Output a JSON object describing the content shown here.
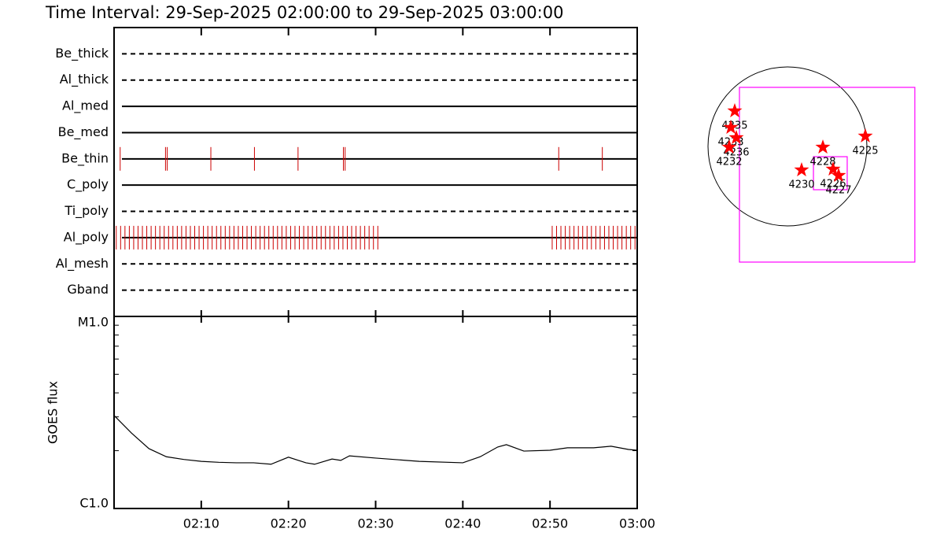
{
  "title": "Time Interval: 29-Sep-2025 02:00:00 to 29-Sep-2025 03:00:00",
  "chart_data": [
    {
      "type": "timeline",
      "xlim": [
        "02:00:00",
        "03:00:00"
      ],
      "color": "#cc0000",
      "rows": [
        {
          "label": "Be_thick",
          "style": "dashed",
          "events": []
        },
        {
          "label": "Al_thick",
          "style": "dashed",
          "events": []
        },
        {
          "label": "Al_med",
          "style": "solid",
          "events": []
        },
        {
          "label": "Be_med",
          "style": "solid",
          "events": []
        },
        {
          "label": "Be_thin",
          "style": "solid",
          "events": [
            "02:00:42",
            "02:05:54",
            "02:06:06",
            "02:11:06",
            "02:16:06",
            "02:21:06",
            "02:26:18",
            "02:26:30",
            "02:51:00",
            "02:56:00"
          ]
        },
        {
          "label": "C_poly",
          "style": "solid",
          "events": []
        },
        {
          "label": "Ti_poly",
          "style": "dashed",
          "events": []
        },
        {
          "label": "Al_poly",
          "style": "solid",
          "events": [
            "02:00:15",
            "02:00:45",
            "02:01:15",
            "02:01:45",
            "02:02:15",
            "02:02:45",
            "02:03:15",
            "02:03:45",
            "02:04:15",
            "02:04:45",
            "02:05:15",
            "02:05:45",
            "02:06:15",
            "02:06:45",
            "02:07:15",
            "02:07:45",
            "02:08:15",
            "02:08:45",
            "02:09:15",
            "02:09:45",
            "02:10:15",
            "02:10:45",
            "02:11:15",
            "02:11:45",
            "02:12:15",
            "02:12:45",
            "02:13:15",
            "02:13:45",
            "02:14:15",
            "02:14:45",
            "02:15:15",
            "02:15:45",
            "02:16:15",
            "02:16:45",
            "02:17:15",
            "02:17:45",
            "02:18:15",
            "02:18:45",
            "02:19:15",
            "02:19:45",
            "02:20:15",
            "02:20:45",
            "02:21:15",
            "02:21:45",
            "02:22:15",
            "02:22:45",
            "02:23:15",
            "02:23:45",
            "02:24:15",
            "02:24:45",
            "02:25:15",
            "02:25:45",
            "02:26:15",
            "02:26:45",
            "02:27:15",
            "02:27:45",
            "02:28:15",
            "02:28:45",
            "02:29:15",
            "02:29:45",
            "02:30:15",
            "02:50:15",
            "02:50:45",
            "02:51:15",
            "02:51:45",
            "02:52:15",
            "02:52:45",
            "02:53:15",
            "02:53:45",
            "02:54:15",
            "02:54:45",
            "02:55:15",
            "02:55:45",
            "02:56:15",
            "02:56:45",
            "02:57:15",
            "02:57:45",
            "02:58:15",
            "02:58:45",
            "02:59:15",
            "02:59:45"
          ]
        },
        {
          "label": "Al_mesh",
          "style": "dashed",
          "events": []
        },
        {
          "label": "Gband",
          "style": "dashed",
          "events": []
        }
      ]
    },
    {
      "type": "line",
      "ylabel": "GOES flux",
      "color": "#000000",
      "log_y": true,
      "x": [
        "02:00",
        "02:02",
        "02:04",
        "02:06",
        "02:08",
        "02:10",
        "02:12",
        "02:14",
        "02:16",
        "02:18",
        "02:20",
        "02:22",
        "02:23",
        "02:25",
        "02:26",
        "02:27",
        "02:30",
        "02:35",
        "02:40",
        "02:42",
        "02:44",
        "02:45",
        "02:47",
        "02:50",
        "02:52",
        "02:55",
        "02:57",
        "02:59",
        "03:00"
      ],
      "values": [
        3.05e-06,
        2.47e-06,
        2.05e-06,
        1.86e-06,
        1.8e-06,
        1.76e-06,
        1.74e-06,
        1.73e-06,
        1.73e-06,
        1.7e-06,
        1.85e-06,
        1.73e-06,
        1.7e-06,
        1.81e-06,
        1.78e-06,
        1.88e-06,
        1.83e-06,
        1.76e-06,
        1.73e-06,
        1.86e-06,
        2.09e-06,
        2.15e-06,
        1.99e-06,
        2.01e-06,
        2.07e-06,
        2.07e-06,
        2.11e-06,
        2.03e-06,
        2.01e-06
      ],
      "xlim": [
        "02:00",
        "03:00"
      ],
      "xticks": [
        "02:10",
        "02:20",
        "02:30",
        "02:40",
        "02:50",
        "03:00"
      ],
      "ylim": [
        1e-06,
        1e-05
      ],
      "yticks": [
        {
          "value": 1e-06,
          "label": "C1.0"
        },
        {
          "value": 1e-05,
          "label": "M1.0"
        }
      ],
      "yminor": [
        2e-06,
        3e-06,
        4e-06,
        5e-06,
        6e-06,
        7e-06,
        8e-06,
        9e-06
      ]
    },
    {
      "type": "map",
      "disk_radius": 960,
      "color": "#ff0000",
      "box_color": "#ff00ff",
      "labels": [
        "4235",
        "4233",
        "4236",
        "4232",
        "4228",
        "4225",
        "4230",
        "4226",
        "4227"
      ],
      "x": [
        -637,
        -684,
        -618,
        -703,
        428,
        941,
        171,
        551,
        618
      ],
      "y": [
        428,
        228,
        105,
        -10,
        -10,
        124,
        -285,
        -276,
        -352
      ],
      "boxes": [
        {
          "xlim": [
            -580,
            1539
          ],
          "ylim": [
            -1397,
            713
          ]
        },
        {
          "xlim": [
            314,
            722
          ],
          "ylim": [
            -523,
            -124
          ]
        }
      ]
    }
  ]
}
